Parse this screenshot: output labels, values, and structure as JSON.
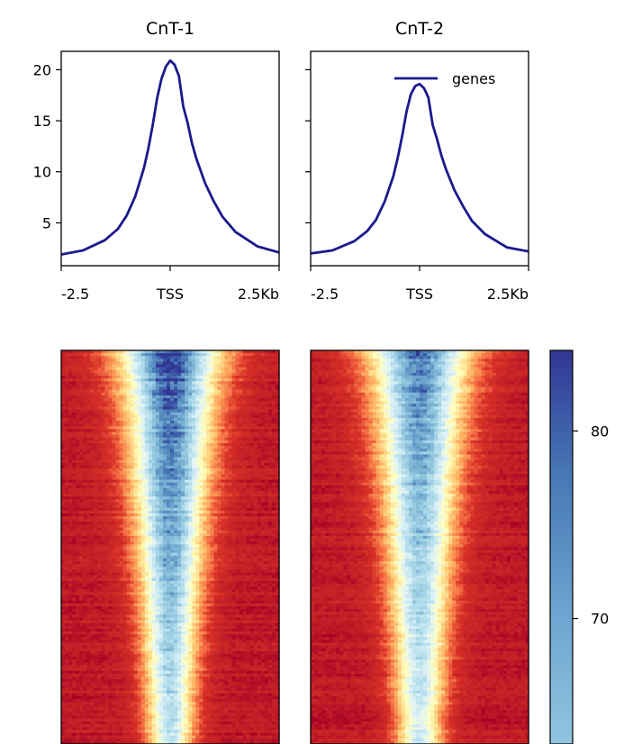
{
  "chart_data": [
    {
      "type": "line",
      "panel": "profile-1",
      "title": "CnT-1",
      "xlabel": "",
      "ylabel": "",
      "x_tick_labels": [
        "-2.5",
        "TSS",
        "2.5Kb"
      ],
      "x_ticks": [
        -2.5,
        0,
        2.5
      ],
      "xlim": [
        -2.5,
        2.5
      ],
      "ylim": [
        0.8,
        21.8
      ],
      "y_ticks": [
        5,
        10,
        15,
        20
      ],
      "y_tick_labels": [
        "5",
        "10",
        "15",
        "20"
      ],
      "series": [
        {
          "name": "genes",
          "color": "#1a1a8c",
          "x": [
            -2.5,
            -2.0,
            -1.5,
            -1.2,
            -1.0,
            -0.8,
            -0.6,
            -0.5,
            -0.4,
            -0.3,
            -0.2,
            -0.1,
            0.0,
            0.1,
            0.2,
            0.3,
            0.4,
            0.5,
            0.6,
            0.8,
            1.0,
            1.2,
            1.5,
            2.0,
            2.5
          ],
          "y": [
            1.9,
            2.3,
            3.3,
            4.4,
            5.7,
            7.6,
            10.4,
            12.3,
            14.6,
            17.2,
            19.1,
            20.3,
            20.9,
            20.5,
            19.4,
            16.4,
            14.8,
            12.8,
            11.3,
            8.9,
            7.1,
            5.6,
            4.1,
            2.7,
            2.1
          ]
        }
      ]
    },
    {
      "type": "line",
      "panel": "profile-2",
      "title": "CnT-2",
      "xlabel": "",
      "ylabel": "",
      "x_tick_labels": [
        "-2.5",
        "TSS",
        "2.5Kb"
      ],
      "x_ticks": [
        -2.5,
        0,
        2.5
      ],
      "xlim": [
        -2.5,
        2.5
      ],
      "ylim": [
        0.8,
        21.8
      ],
      "y_ticks": [
        5,
        10,
        15,
        20
      ],
      "y_tick_labels": [
        "",
        "",
        "",
        ""
      ],
      "legend": {
        "entries": [
          "genes"
        ],
        "placement": "top-right"
      },
      "series": [
        {
          "name": "genes",
          "color": "#1a1a8c",
          "x": [
            -2.5,
            -2.0,
            -1.5,
            -1.2,
            -1.0,
            -0.8,
            -0.6,
            -0.5,
            -0.4,
            -0.3,
            -0.2,
            -0.1,
            0.0,
            0.1,
            0.2,
            0.3,
            0.4,
            0.5,
            0.6,
            0.8,
            1.0,
            1.2,
            1.5,
            2.0,
            2.5
          ],
          "y": [
            2.0,
            2.3,
            3.2,
            4.2,
            5.3,
            7.1,
            9.6,
            11.4,
            13.5,
            15.9,
            17.6,
            18.4,
            18.6,
            18.2,
            17.3,
            14.6,
            13.2,
            11.6,
            10.3,
            8.2,
            6.6,
            5.2,
            3.9,
            2.6,
            2.2
          ]
        }
      ]
    },
    {
      "type": "heatmap",
      "panel": "heatmaps",
      "panels": [
        "CnT-1",
        "CnT-2"
      ],
      "x_range": [
        -2.5,
        2.5
      ],
      "row_count": 140,
      "colormap": "RdYlBu",
      "colorbar": {
        "ticks": [
          70,
          80
        ],
        "tick_labels": [
          "70",
          "80"
        ],
        "range": [
          63.3,
          84.3
        ],
        "color_low": "#91bfdb",
        "color_high": "#313695"
      }
    }
  ]
}
